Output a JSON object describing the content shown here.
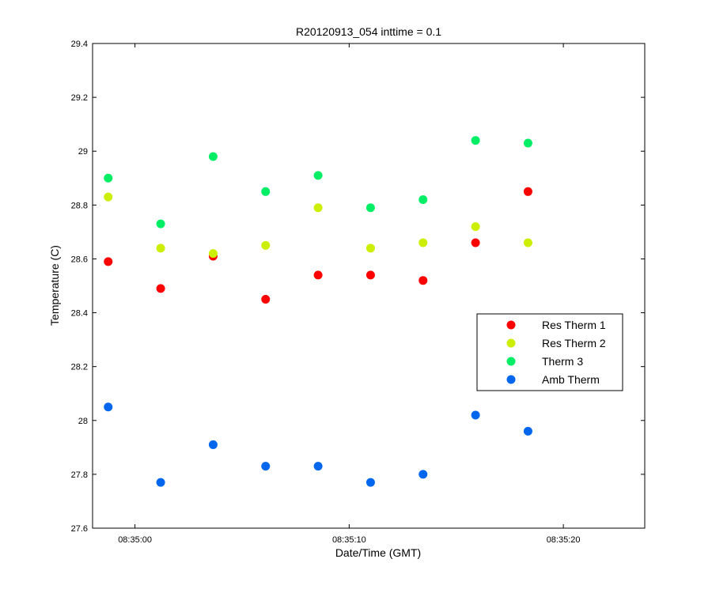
{
  "chart_data": {
    "type": "scatter",
    "title": "R20120913_054 inttime = 0.1",
    "xlabel": "Date/Time (GMT)",
    "ylabel": "Temperature (C)",
    "x_unit": "seconds after 08:35:00",
    "xlim": [
      -1.98,
      23.8
    ],
    "ylim": [
      27.6,
      29.4
    ],
    "x_ticks": [
      {
        "value": 0,
        "label": "08:35:00"
      },
      {
        "value": 10,
        "label": "08:35:10"
      },
      {
        "value": 20,
        "label": "08:35:20"
      }
    ],
    "y_ticks": [
      {
        "value": 27.6,
        "label": "27.6"
      },
      {
        "value": 27.8,
        "label": "27.8"
      },
      {
        "value": 28.0,
        "label": "28"
      },
      {
        "value": 28.2,
        "label": "28.2"
      },
      {
        "value": 28.4,
        "label": "28.4"
      },
      {
        "value": 28.6,
        "label": "28.6"
      },
      {
        "value": 28.8,
        "label": "28.8"
      },
      {
        "value": 29.0,
        "label": "29"
      },
      {
        "value": 29.2,
        "label": "29.2"
      },
      {
        "value": 29.4,
        "label": "29.4"
      }
    ],
    "grid": false,
    "legend_position": "right",
    "x": [
      -1.25,
      1.2,
      3.65,
      6.1,
      8.55,
      11.0,
      13.45,
      15.9,
      18.35
    ],
    "series": [
      {
        "name": "Res Therm 1",
        "color": "#ff0000",
        "values": [
          28.59,
          28.49,
          28.61,
          28.45,
          28.54,
          28.54,
          28.52,
          28.66,
          28.85
        ]
      },
      {
        "name": "Res Therm 2",
        "color": "#ccee00",
        "values": [
          28.83,
          28.64,
          28.62,
          28.65,
          28.79,
          28.64,
          28.66,
          28.72,
          28.66
        ]
      },
      {
        "name": "Therm 3",
        "color": "#00ee66",
        "values": [
          28.9,
          28.73,
          28.98,
          28.85,
          28.91,
          28.79,
          28.82,
          29.04,
          29.03
        ]
      },
      {
        "name": "Amb Therm",
        "color": "#0066ee",
        "values": [
          28.05,
          27.77,
          27.91,
          27.83,
          27.83,
          27.77,
          27.8,
          28.02,
          27.96
        ]
      }
    ]
  }
}
